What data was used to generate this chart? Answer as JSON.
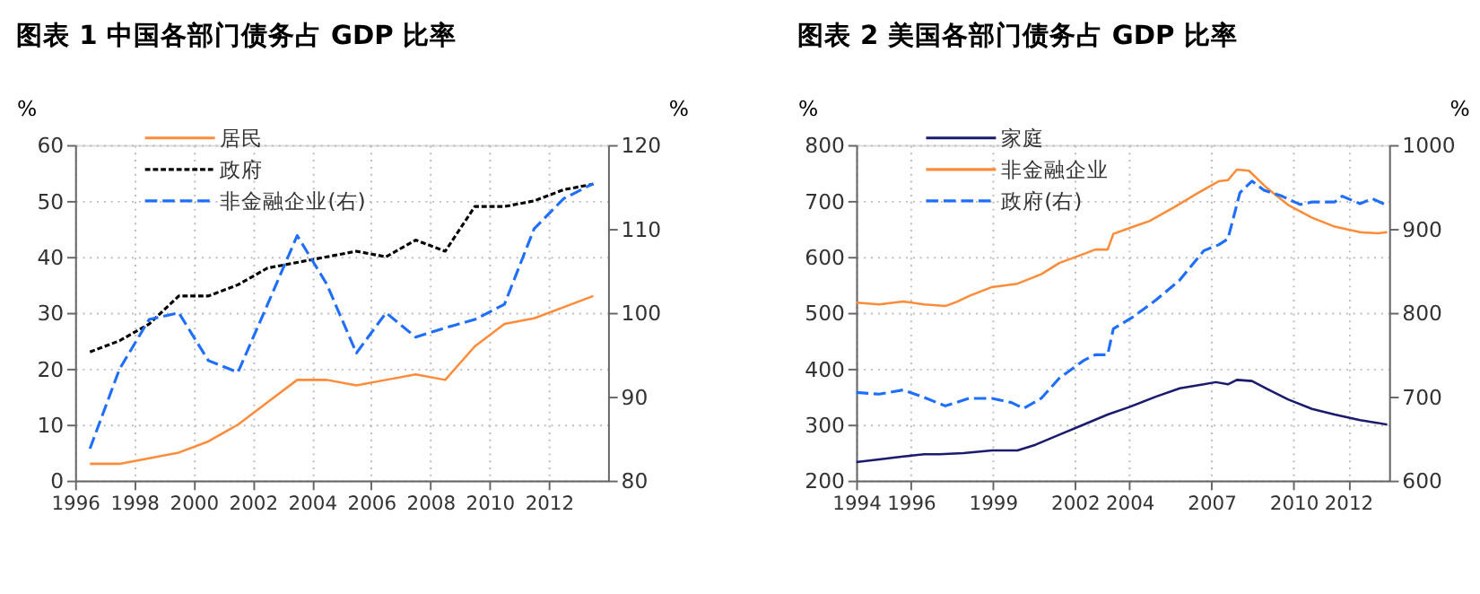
{
  "chart_data": [
    {
      "type": "line",
      "title": "图表 1 中国各部门债务占 GDP 比率",
      "ylabel": "%",
      "y2label": "%",
      "legend": "top left",
      "grid": true,
      "marker": "none",
      "xlim": [
        1996,
        2014
      ],
      "xticks": [
        1996,
        1998,
        2000,
        2002,
        2004,
        2006,
        2008,
        2010,
        2012
      ],
      "ylim": [
        0,
        60
      ],
      "yticks": [
        0,
        10,
        20,
        30,
        40,
        50,
        60
      ],
      "y2lim": [
        80,
        120
      ],
      "y2ticks": [
        80,
        90,
        100,
        110,
        120
      ],
      "x": [
        1996.5,
        1997.5,
        1998.5,
        1999.5,
        2000.5,
        2001.5,
        2002.5,
        2003.5,
        2004.5,
        2005.5,
        2006.5,
        2007.5,
        2008.5,
        2009.5,
        2010.5,
        2011.5,
        2012.5,
        2013.5
      ],
      "series": [
        {
          "name": "居民",
          "color": "#ff8c3a",
          "line_style": "solid",
          "values": [
            3,
            3,
            4,
            5,
            7,
            10,
            14,
            18,
            18,
            17,
            18,
            19,
            18,
            24,
            28,
            29,
            31,
            33
          ]
        },
        {
          "name": "政府",
          "color": "#000000",
          "line_style": "dotted",
          "values": [
            23,
            25,
            28,
            33,
            33,
            35,
            38,
            39,
            40,
            41,
            40,
            43,
            41,
            49,
            49,
            50,
            52,
            53
          ]
        },
        {
          "name": "非金融企业(右)",
          "color": "#1e6fff",
          "line_style": "dashed",
          "axis": "y2",
          "values": [
            83.8,
            93.3,
            99.2,
            100,
            94.3,
            92.9,
            101,
            109.2,
            103.4,
            95.2,
            100,
            97.1,
            98.2,
            99.2,
            101,
            110,
            113.6,
            115.4
          ]
        }
      ]
    },
    {
      "type": "line",
      "title": "图表 2 美国各部门债务占 GDP 比率",
      "ylabel": "%",
      "y2label": "%",
      "legend": "top left",
      "grid": true,
      "marker": "none",
      "xlim": [
        1994,
        2013.5
      ],
      "xticks": [
        1994,
        1996,
        1999,
        2002,
        2004,
        2007,
        2010,
        2012
      ],
      "ylim": [
        200,
        800
      ],
      "yticks": [
        200,
        300,
        400,
        500,
        600,
        700,
        800
      ],
      "y2lim": [
        600,
        1000
      ],
      "y2ticks": [
        600,
        700,
        800,
        900,
        1000
      ],
      "series": [
        {
          "name": "家庭",
          "color": "#1a1a6e",
          "line_style": "solid",
          "x": [
            1994.0,
            1994.84,
            1995.72,
            1996.49,
            1997.04,
            1997.92,
            1998.97,
            1999.9,
            2000.56,
            2001.48,
            2002.32,
            2003.2,
            2003.97,
            2004.96,
            2005.84,
            2006.72,
            2007.16,
            2007.6,
            2007.93,
            2008.48,
            2009.03,
            2009.8,
            2010.68,
            2011.51,
            2012.44,
            2013.1,
            2013.43
          ],
          "values": [
            233,
            238,
            243,
            247,
            247,
            249,
            254,
            254,
            264,
            283,
            300,
            318,
            331,
            350,
            365,
            372,
            376,
            372,
            380,
            378,
            364,
            345,
            328,
            318,
            308,
            303,
            300
          ]
        },
        {
          "name": "非金融企业",
          "color": "#ff8c3a",
          "line_style": "solid",
          "x": [
            1994.0,
            1994.84,
            1995.72,
            1996.49,
            1997.26,
            1997.7,
            1998.13,
            1998.97,
            1999.9,
            2000.77,
            2001.43,
            2002.32,
            2002.75,
            2003.2,
            2003.41,
            2003.97,
            2004.73,
            2005.61,
            2006.5,
            2007.26,
            2007.6,
            2007.93,
            2008.37,
            2009.03,
            2009.8,
            2010.68,
            2011.51,
            2012.44,
            2013.1,
            2013.43
          ],
          "values": [
            518,
            515,
            520,
            515,
            512,
            520,
            530,
            546,
            552,
            569,
            589,
            605,
            613,
            613,
            641,
            651,
            664,
            688,
            714,
            735,
            737,
            756,
            754,
            723,
            693,
            670,
            654,
            644,
            642,
            644
          ]
        },
        {
          "name": "政府(右)",
          "color": "#1e6fff",
          "line_style": "dashed",
          "axis": "y2",
          "x": [
            1994.0,
            1994.84,
            1995.72,
            1996.49,
            1997.26,
            1998.13,
            1998.97,
            1999.68,
            2000.12,
            2000.77,
            2001.43,
            2002.32,
            2002.75,
            2003.2,
            2003.41,
            2004.08,
            2004.96,
            2005.84,
            2006.72,
            2007.26,
            2007.6,
            2008.04,
            2008.48,
            2008.92,
            2009.58,
            2010.24,
            2010.68,
            2011.51,
            2011.78,
            2012.44,
            2012.88,
            2013.43
          ],
          "values": [
            705,
            703,
            708,
            699,
            689,
            698,
            698,
            693,
            686,
            698,
            722,
            743,
            750,
            750,
            781,
            794,
            815,
            839,
            874,
            881,
            888,
            943,
            957,
            946,
            939,
            929,
            932,
            932,
            939,
            930,
            936,
            928
          ]
        }
      ]
    }
  ]
}
